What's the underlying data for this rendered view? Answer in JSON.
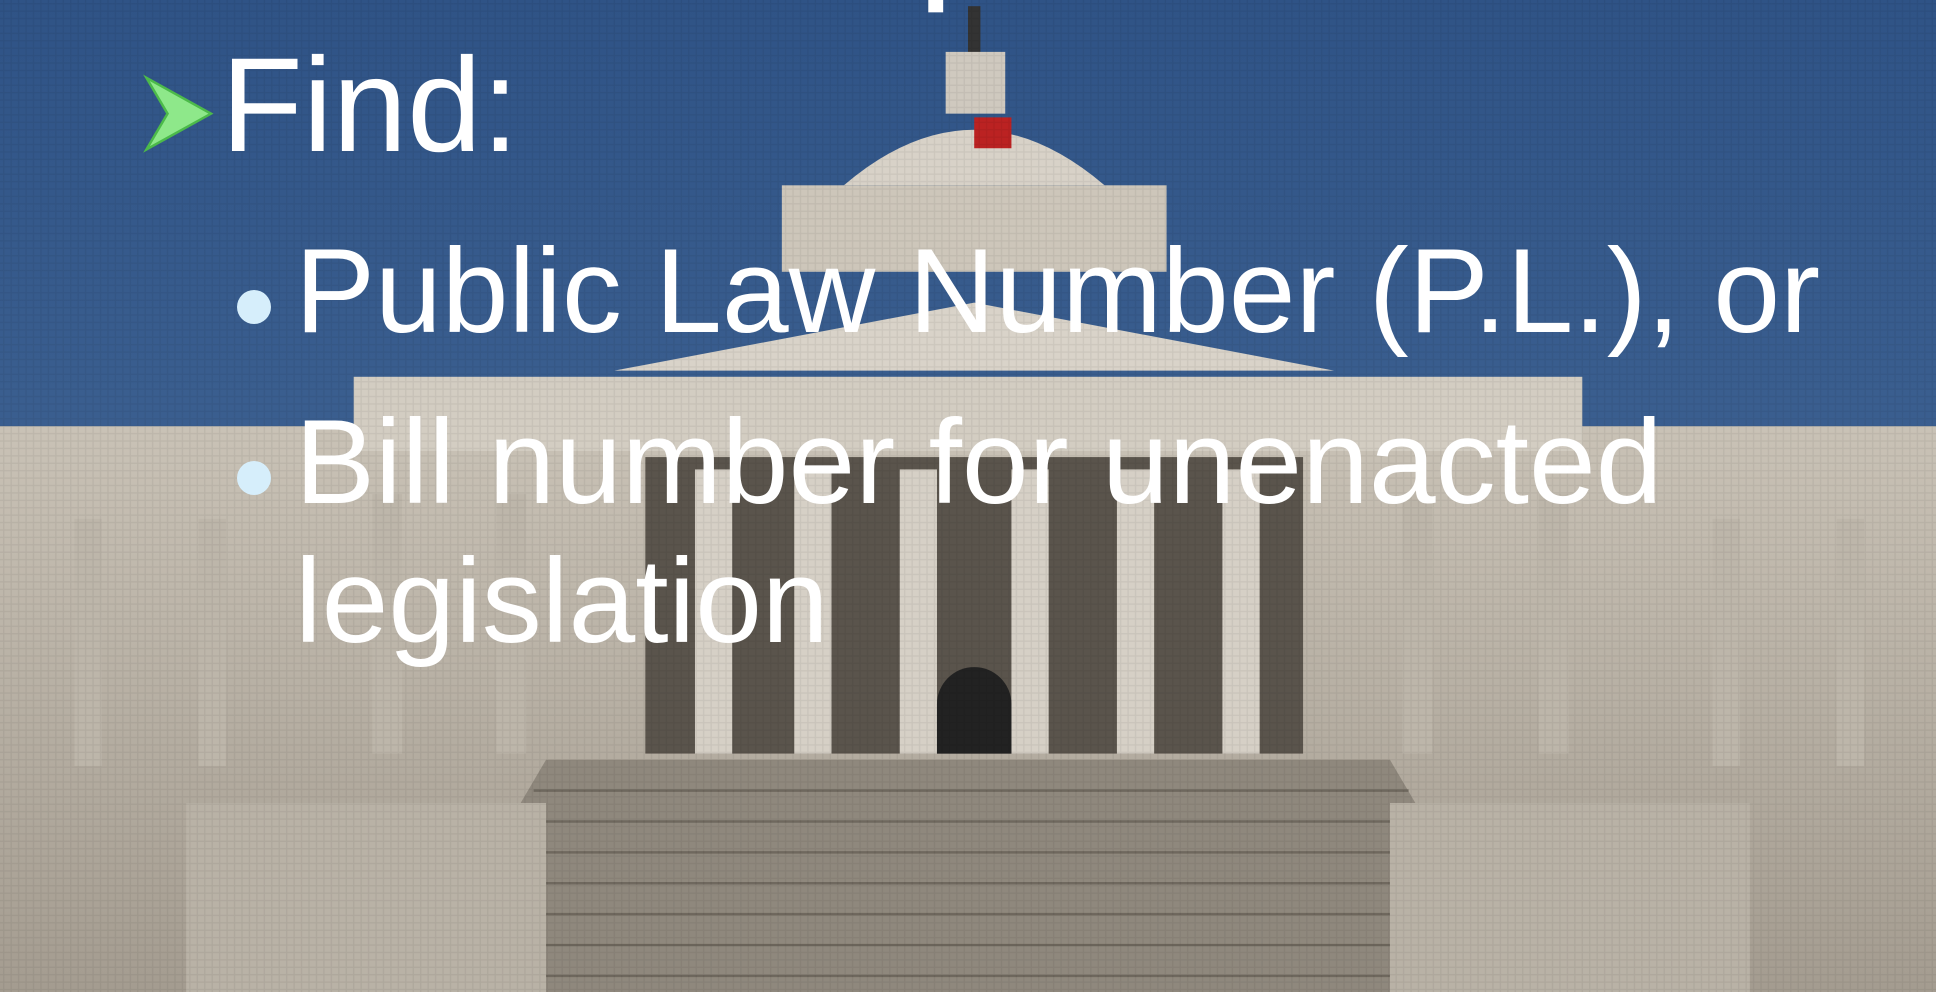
{
  "slide": {
    "heading": "Find:",
    "bullets": [
      "Public Law Number (P.L.), or",
      "Bill number for unenacted legislation"
    ]
  }
}
